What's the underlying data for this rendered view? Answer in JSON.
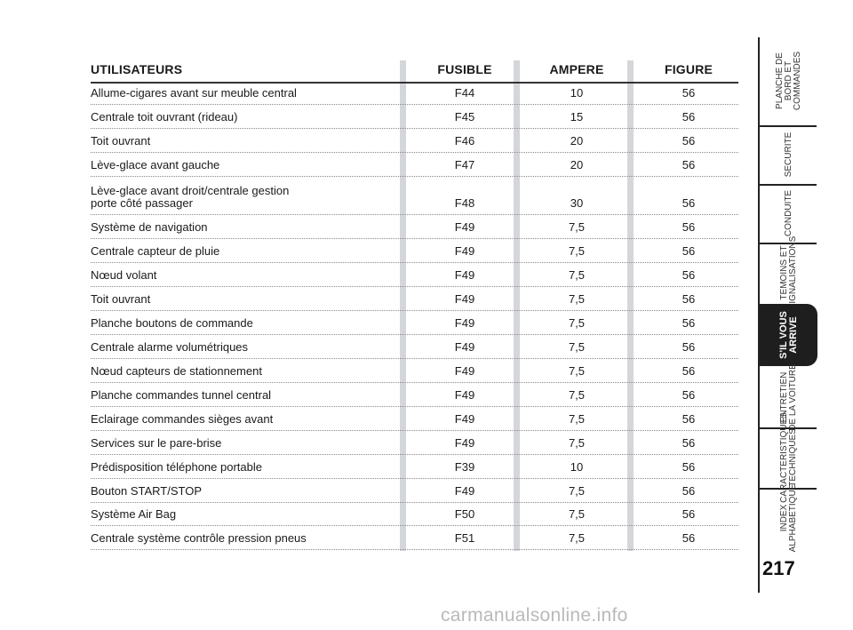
{
  "table": {
    "headers": {
      "users": "UTILISATEURS",
      "fuse": "FUSIBLE",
      "ampere": "AMPERE",
      "figure": "FIGURE"
    },
    "rows": [
      {
        "user": "Allume-cigares avant sur meuble central",
        "fuse": "F44",
        "ampere": "10",
        "figure": "56"
      },
      {
        "user": "Centrale toit ouvrant (rideau)",
        "fuse": "F45",
        "ampere": "15",
        "figure": "56"
      },
      {
        "user": "Toit ouvrant",
        "fuse": "F46",
        "ampere": "20",
        "figure": "56"
      },
      {
        "user": "Lève-glace avant gauche",
        "fuse": "F47",
        "ampere": "20",
        "figure": "56"
      },
      {
        "user": "Lève-glace avant droit/centrale gestion\nporte côté passager",
        "fuse": "F48",
        "ampere": "30",
        "figure": "56"
      },
      {
        "user": "Système de navigation",
        "fuse": "F49",
        "ampere": "7,5",
        "figure": "56"
      },
      {
        "user": "Centrale capteur de pluie",
        "fuse": "F49",
        "ampere": "7,5",
        "figure": "56"
      },
      {
        "user": "Nœud volant",
        "fuse": "F49",
        "ampere": "7,5",
        "figure": "56"
      },
      {
        "user": "Toit ouvrant",
        "fuse": "F49",
        "ampere": "7,5",
        "figure": "56"
      },
      {
        "user": "Planche boutons de commande",
        "fuse": "F49",
        "ampere": "7,5",
        "figure": "56"
      },
      {
        "user": "Centrale alarme volumétriques",
        "fuse": "F49",
        "ampere": "7,5",
        "figure": "56"
      },
      {
        "user": "Nœud capteurs de stationnement",
        "fuse": "F49",
        "ampere": "7,5",
        "figure": "56"
      },
      {
        "user": "Planche commandes tunnel central",
        "fuse": "F49",
        "ampere": "7,5",
        "figure": "56"
      },
      {
        "user": "Eclairage commandes sièges avant",
        "fuse": "F49",
        "ampere": "7,5",
        "figure": "56"
      },
      {
        "user": "Services sur le pare-brise",
        "fuse": "F49",
        "ampere": "7,5",
        "figure": "56"
      },
      {
        "user": "Prédisposition téléphone portable",
        "fuse": "F39",
        "ampere": "10",
        "figure": "56"
      },
      {
        "user": "Bouton START/STOP",
        "fuse": "F49",
        "ampere": "7,5",
        "figure": "56"
      },
      {
        "user": "Système Air Bag",
        "fuse": "F50",
        "ampere": "7,5",
        "figure": "56"
      },
      {
        "user": "Centrale système contrôle pression pneus",
        "fuse": "F51",
        "ampere": "7,5",
        "figure": "56"
      }
    ]
  },
  "nav": {
    "tabs": [
      {
        "label": "PLANCHE DE\nBORD ET\nCOMMANDES",
        "active": false
      },
      {
        "label": "SECURITE",
        "active": false
      },
      {
        "label": "CONDUITE",
        "active": false
      },
      {
        "label": "TEMOINS ET\nSIGNALISATIONS",
        "active": false
      },
      {
        "label": "S'IL VOUS\nARRIVE",
        "active": true
      },
      {
        "label": "ENTRETIEN\nDE LA VOITURE",
        "active": false
      },
      {
        "label": "CARACTERISTIQUES\nTECHNIQUES",
        "active": false
      },
      {
        "label": "INDEX\nALPHABETIQUE",
        "active": false
      }
    ]
  },
  "page_number": "217",
  "watermark": "carmanualsonline.info"
}
